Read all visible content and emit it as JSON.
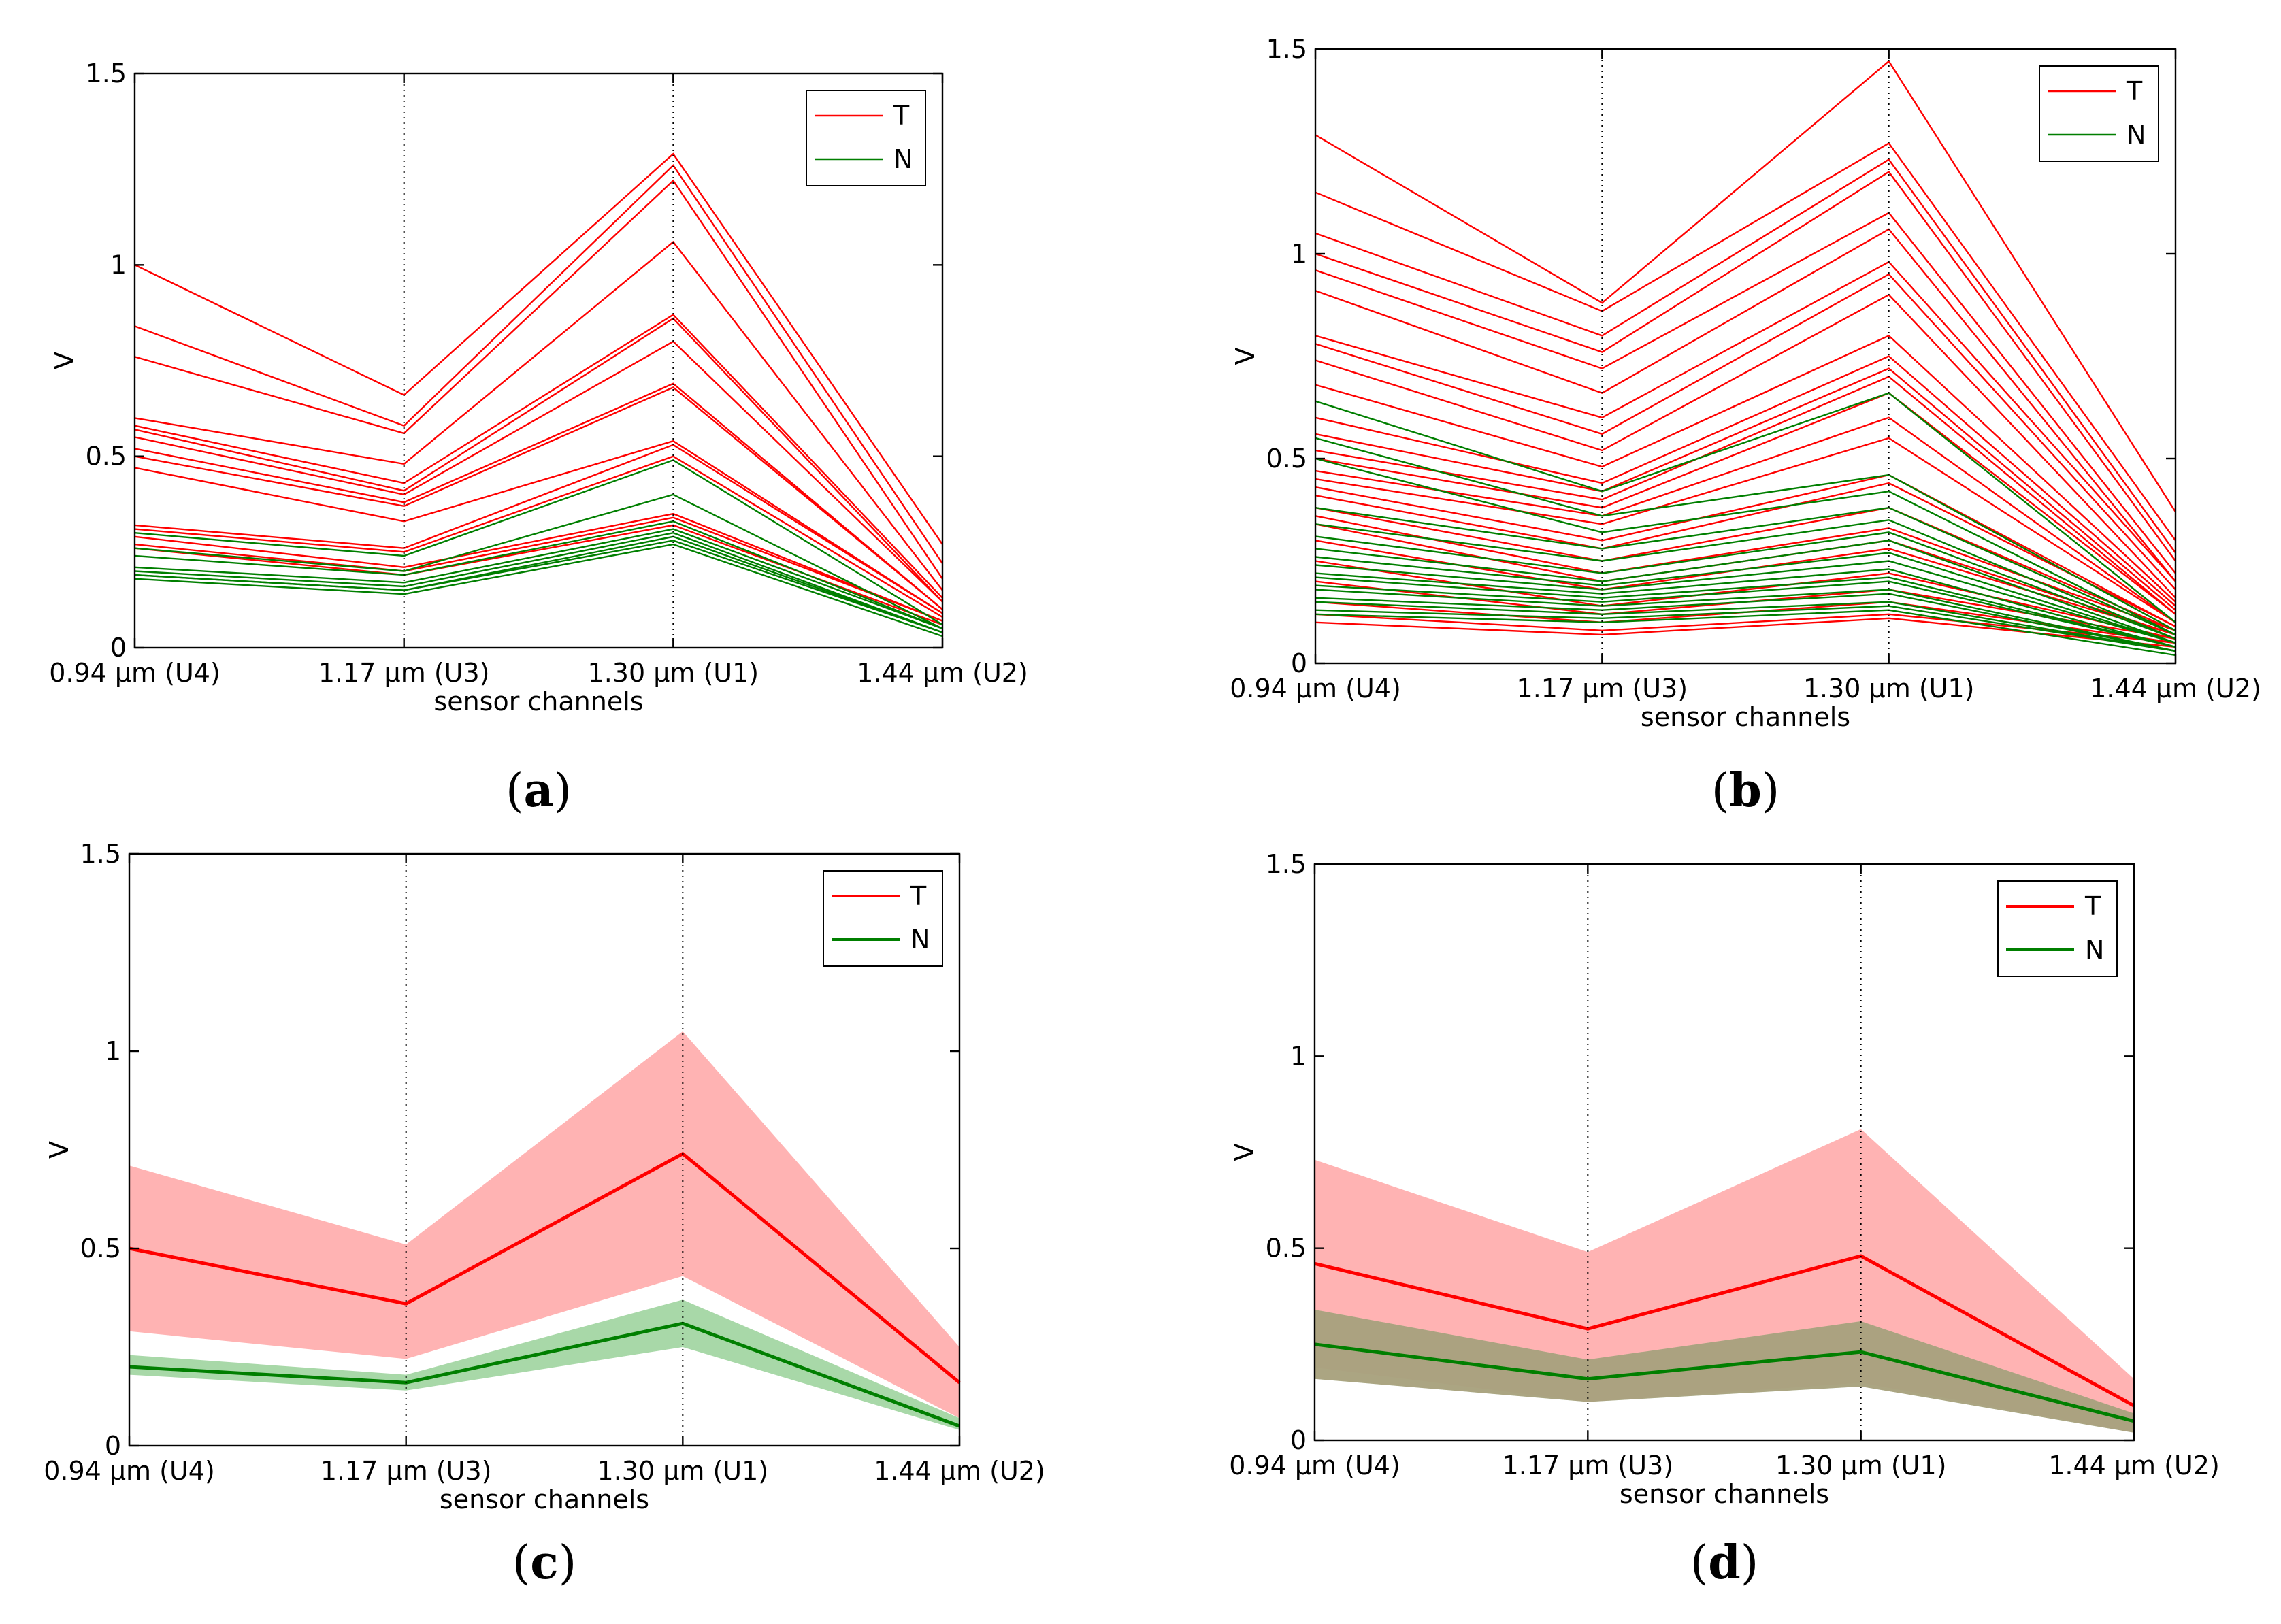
{
  "colors": {
    "T": "#ff0000",
    "N": "#007f00",
    "T_band": "#ffb3b3",
    "N_band": "#a8d8a8",
    "overlap": "#a89a78"
  },
  "chart_data": [
    {
      "id": "a",
      "panel_label": "a",
      "type": "line",
      "categories": [
        "0.94 μm (U4)",
        "1.17 μm (U3)",
        "1.30 μm (U1)",
        "1.44 μm (U2)"
      ],
      "xlabel": "sensor channels",
      "ylabel": "V",
      "ylim": [
        0,
        1.5
      ],
      "yticks": [
        "0",
        "0.5",
        "1",
        "1.5"
      ],
      "legend": {
        "position": "top-right",
        "entries": [
          {
            "key": "T",
            "label": "T"
          },
          {
            "key": "N",
            "label": "N"
          }
        ]
      },
      "vgrid": "dotted",
      "series": [
        {
          "group": "T",
          "values": [
            1.0,
            0.66,
            1.29,
            0.27
          ]
        },
        {
          "group": "T",
          "values": [
            0.84,
            0.58,
            1.26,
            0.22
          ]
        },
        {
          "group": "T",
          "values": [
            0.76,
            0.56,
            1.22,
            0.18
          ]
        },
        {
          "group": "T",
          "values": [
            0.6,
            0.48,
            1.06,
            0.15
          ]
        },
        {
          "group": "T",
          "values": [
            0.58,
            0.43,
            0.87,
            0.13
          ]
        },
        {
          "group": "T",
          "values": [
            0.57,
            0.41,
            0.86,
            0.12
          ]
        },
        {
          "group": "T",
          "values": [
            0.55,
            0.4,
            0.8,
            0.12
          ]
        },
        {
          "group": "T",
          "values": [
            0.52,
            0.38,
            0.69,
            0.1
          ]
        },
        {
          "group": "T",
          "values": [
            0.5,
            0.37,
            0.68,
            0.1
          ]
        },
        {
          "group": "T",
          "values": [
            0.47,
            0.33,
            0.54,
            0.09
          ]
        },
        {
          "group": "T",
          "values": [
            0.32,
            0.26,
            0.53,
            0.09
          ]
        },
        {
          "group": "T",
          "values": [
            0.31,
            0.25,
            0.5,
            0.08
          ]
        },
        {
          "group": "T",
          "values": [
            0.29,
            0.21,
            0.35,
            0.07
          ]
        },
        {
          "group": "T",
          "values": [
            0.27,
            0.2,
            0.34,
            0.07
          ]
        },
        {
          "group": "T",
          "values": [
            0.26,
            0.19,
            0.32,
            0.06
          ]
        },
        {
          "group": "N",
          "values": [
            0.3,
            0.24,
            0.49,
            0.06
          ]
        },
        {
          "group": "N",
          "values": [
            0.26,
            0.2,
            0.4,
            0.05
          ]
        },
        {
          "group": "N",
          "values": [
            0.24,
            0.19,
            0.33,
            0.05
          ]
        },
        {
          "group": "N",
          "values": [
            0.21,
            0.17,
            0.31,
            0.05
          ]
        },
        {
          "group": "N",
          "values": [
            0.2,
            0.16,
            0.3,
            0.04
          ]
        },
        {
          "group": "N",
          "values": [
            0.19,
            0.15,
            0.29,
            0.04
          ]
        },
        {
          "group": "N",
          "values": [
            0.19,
            0.15,
            0.28,
            0.04
          ]
        },
        {
          "group": "N",
          "values": [
            0.18,
            0.14,
            0.27,
            0.03
          ]
        }
      ]
    },
    {
      "id": "b",
      "panel_label": "b",
      "type": "line",
      "categories": [
        "0.94 μm (U4)",
        "1.17 μm (U3)",
        "1.30 μm (U1)",
        "1.44 μm (U2)"
      ],
      "xlabel": "sensor channels",
      "ylabel": "V",
      "ylim": [
        0,
        1.5
      ],
      "yticks": [
        "0",
        "0.5",
        "1",
        "1.5"
      ],
      "legend": {
        "position": "top-right",
        "entries": [
          {
            "key": "T",
            "label": "T"
          },
          {
            "key": "N",
            "label": "N"
          }
        ]
      },
      "vgrid": "dotted",
      "series": [
        {
          "group": "T",
          "values": [
            1.29,
            0.88,
            1.47,
            0.37
          ]
        },
        {
          "group": "T",
          "values": [
            1.15,
            0.86,
            1.27,
            0.3
          ]
        },
        {
          "group": "T",
          "values": [
            1.05,
            0.8,
            1.23,
            0.27
          ]
        },
        {
          "group": "T",
          "values": [
            1.0,
            0.76,
            1.2,
            0.25
          ]
        },
        {
          "group": "T",
          "values": [
            0.96,
            0.72,
            1.1,
            0.22
          ]
        },
        {
          "group": "T",
          "values": [
            0.91,
            0.66,
            1.06,
            0.2
          ]
        },
        {
          "group": "T",
          "values": [
            0.8,
            0.6,
            0.98,
            0.2
          ]
        },
        {
          "group": "T",
          "values": [
            0.78,
            0.56,
            0.95,
            0.18
          ]
        },
        {
          "group": "T",
          "values": [
            0.74,
            0.52,
            0.9,
            0.16
          ]
        },
        {
          "group": "T",
          "values": [
            0.68,
            0.48,
            0.8,
            0.15
          ]
        },
        {
          "group": "T",
          "values": [
            0.6,
            0.44,
            0.75,
            0.14
          ]
        },
        {
          "group": "T",
          "values": [
            0.56,
            0.42,
            0.72,
            0.13
          ]
        },
        {
          "group": "T",
          "values": [
            0.52,
            0.4,
            0.7,
            0.12
          ]
        },
        {
          "group": "T",
          "values": [
            0.5,
            0.38,
            0.66,
            0.12
          ]
        },
        {
          "group": "T",
          "values": [
            0.47,
            0.36,
            0.6,
            0.1
          ]
        },
        {
          "group": "T",
          "values": [
            0.45,
            0.34,
            0.55,
            0.1
          ]
        },
        {
          "group": "T",
          "values": [
            0.43,
            0.3,
            0.46,
            0.09
          ]
        },
        {
          "group": "T",
          "values": [
            0.41,
            0.28,
            0.44,
            0.09
          ]
        },
        {
          "group": "T",
          "values": [
            0.38,
            0.25,
            0.38,
            0.08
          ]
        },
        {
          "group": "T",
          "values": [
            0.36,
            0.22,
            0.33,
            0.08
          ]
        },
        {
          "group": "T",
          "values": [
            0.34,
            0.2,
            0.3,
            0.07
          ]
        },
        {
          "group": "T",
          "values": [
            0.3,
            0.18,
            0.28,
            0.07
          ]
        },
        {
          "group": "T",
          "values": [
            0.25,
            0.14,
            0.22,
            0.06
          ]
        },
        {
          "group": "T",
          "values": [
            0.2,
            0.12,
            0.18,
            0.06
          ]
        },
        {
          "group": "T",
          "values": [
            0.15,
            0.1,
            0.15,
            0.05
          ]
        },
        {
          "group": "T",
          "values": [
            0.12,
            0.08,
            0.12,
            0.05
          ]
        },
        {
          "group": "T",
          "values": [
            0.1,
            0.07,
            0.11,
            0.04
          ]
        },
        {
          "group": "N",
          "values": [
            0.64,
            0.42,
            0.66,
            0.1
          ]
        },
        {
          "group": "N",
          "values": [
            0.55,
            0.36,
            0.46,
            0.08
          ]
        },
        {
          "group": "N",
          "values": [
            0.5,
            0.32,
            0.42,
            0.07
          ]
        },
        {
          "group": "N",
          "values": [
            0.38,
            0.28,
            0.38,
            0.07
          ]
        },
        {
          "group": "N",
          "values": [
            0.34,
            0.25,
            0.35,
            0.06
          ]
        },
        {
          "group": "N",
          "values": [
            0.31,
            0.22,
            0.32,
            0.06
          ]
        },
        {
          "group": "N",
          "values": [
            0.28,
            0.2,
            0.3,
            0.05
          ]
        },
        {
          "group": "N",
          "values": [
            0.26,
            0.19,
            0.27,
            0.05
          ]
        },
        {
          "group": "N",
          "values": [
            0.24,
            0.18,
            0.25,
            0.05
          ]
        },
        {
          "group": "N",
          "values": [
            0.22,
            0.17,
            0.23,
            0.04
          ]
        },
        {
          "group": "N",
          "values": [
            0.21,
            0.16,
            0.21,
            0.04
          ]
        },
        {
          "group": "N",
          "values": [
            0.19,
            0.15,
            0.2,
            0.04
          ]
        },
        {
          "group": "N",
          "values": [
            0.18,
            0.14,
            0.18,
            0.03
          ]
        },
        {
          "group": "N",
          "values": [
            0.16,
            0.13,
            0.17,
            0.03
          ]
        },
        {
          "group": "N",
          "values": [
            0.15,
            0.12,
            0.15,
            0.03
          ]
        },
        {
          "group": "N",
          "values": [
            0.13,
            0.11,
            0.14,
            0.03
          ]
        },
        {
          "group": "N",
          "values": [
            0.12,
            0.1,
            0.13,
            0.02
          ]
        }
      ]
    },
    {
      "id": "c",
      "panel_label": "c",
      "type": "area",
      "categories": [
        "0.94 μm (U4)",
        "1.17 μm (U3)",
        "1.30 μm (U1)",
        "1.44 μm (U2)"
      ],
      "xlabel": "sensor channels",
      "ylabel": "V",
      "ylim": [
        0,
        1.5
      ],
      "yticks": [
        "0",
        "0.5",
        "1",
        "1.5"
      ],
      "legend": {
        "position": "top-right",
        "entries": [
          {
            "key": "T",
            "label": "T"
          },
          {
            "key": "N",
            "label": "N"
          }
        ]
      },
      "vgrid": "dotted",
      "series": [
        {
          "group": "T",
          "mean": [
            0.5,
            0.36,
            0.74,
            0.16
          ],
          "upper": [
            0.71,
            0.51,
            1.05,
            0.25
          ],
          "lower": [
            0.29,
            0.22,
            0.43,
            0.07
          ]
        },
        {
          "group": "N",
          "mean": [
            0.2,
            0.16,
            0.31,
            0.05
          ],
          "upper": [
            0.23,
            0.18,
            0.37,
            0.07
          ],
          "lower": [
            0.18,
            0.14,
            0.25,
            0.04
          ]
        }
      ]
    },
    {
      "id": "d",
      "panel_label": "d",
      "type": "area",
      "categories": [
        "0.94 μm (U4)",
        "1.17 μm (U3)",
        "1.30 μm (U1)",
        "1.44 μm (U2)"
      ],
      "xlabel": "sensor channels",
      "ylabel": "V",
      "ylim": [
        0,
        1.5
      ],
      "yticks": [
        "0",
        "0.5",
        "1",
        "1.5"
      ],
      "legend": {
        "position": "top-right",
        "entries": [
          {
            "key": "T",
            "label": "T"
          },
          {
            "key": "N",
            "label": "N"
          }
        ]
      },
      "vgrid": "dotted",
      "series": [
        {
          "group": "T",
          "mean": [
            0.46,
            0.29,
            0.48,
            0.09
          ],
          "upper": [
            0.73,
            0.49,
            0.81,
            0.16
          ],
          "lower": [
            0.19,
            0.1,
            0.15,
            0.02
          ]
        },
        {
          "group": "N",
          "mean": [
            0.25,
            0.16,
            0.23,
            0.05
          ],
          "upper": [
            0.34,
            0.21,
            0.31,
            0.07
          ],
          "lower": [
            0.16,
            0.1,
            0.14,
            0.02
          ]
        }
      ]
    }
  ]
}
